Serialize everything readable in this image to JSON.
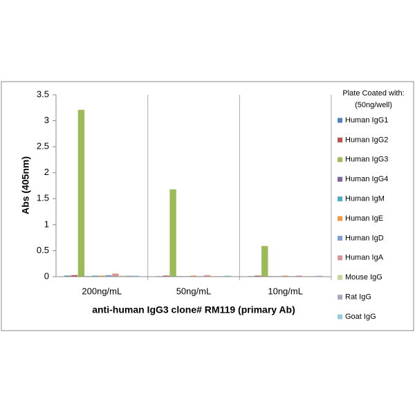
{
  "chart_data": {
    "type": "bar",
    "x_label": "anti-human IgG3 clone# RM119 (primary Ab)",
    "y_label": "Abs (405nm)",
    "legend_title": [
      "Plate Coated with:",
      "(50ng/well)"
    ],
    "categories": [
      "200ng/mL",
      "50ng/mL",
      "10ng/mL"
    ],
    "series": [
      {
        "name": "Human IgG1",
        "color": "#4f81bd",
        "values": [
          0.02,
          0.01,
          0.01
        ]
      },
      {
        "name": "Human IgG2",
        "color": "#c0504d",
        "values": [
          0.03,
          0.02,
          0.02
        ]
      },
      {
        "name": "Human IgG3",
        "color": "#9bbb59",
        "values": [
          3.21,
          1.68,
          0.59
        ]
      },
      {
        "name": "Human IgG4",
        "color": "#8064a2",
        "values": [
          0.01,
          0.01,
          0.01
        ]
      },
      {
        "name": "Human IgM",
        "color": "#4bacc6",
        "values": [
          0.02,
          0.01,
          0.01
        ]
      },
      {
        "name": "Human IgE",
        "color": "#f79646",
        "values": [
          0.02,
          0.02,
          0.02
        ]
      },
      {
        "name": "Human IgD",
        "color": "#7f9fd4",
        "values": [
          0.03,
          0.01,
          0.01
        ]
      },
      {
        "name": "Human IgA",
        "color": "#d99694",
        "values": [
          0.06,
          0.03,
          0.02
        ]
      },
      {
        "name": "Mouse IgG",
        "color": "#c3d69b",
        "values": [
          0.02,
          0.01,
          0.01
        ]
      },
      {
        "name": "Rat IgG",
        "color": "#b3a2c7",
        "values": [
          0.02,
          0.01,
          0.01
        ]
      },
      {
        "name": "Goat IgG",
        "color": "#93cddd",
        "values": [
          0.02,
          0.02,
          0.02
        ]
      }
    ],
    "ylim": [
      0,
      3.5
    ],
    "yticks": [
      0,
      0.5,
      1,
      1.5,
      2,
      2.5,
      3,
      3.5
    ],
    "grid": false
  }
}
